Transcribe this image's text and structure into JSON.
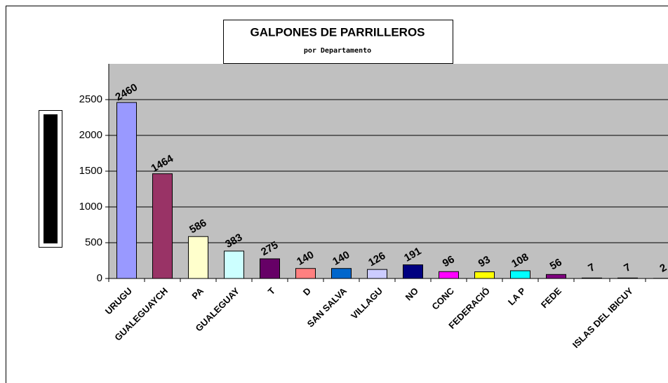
{
  "chart_data": {
    "type": "bar",
    "title": "GALPONES DE PARRILLEROS",
    "subtitle": "por Departamento",
    "categories": [
      "URUGU",
      "GUALEGUAYCH",
      "PA",
      "GUALEGUAY",
      "T",
      "D",
      "SAN SALVA",
      "VILLAGU",
      "NO",
      "CONC",
      "FEDERACIÓ",
      "LA P",
      "FEDE",
      null,
      "ISLAS DEL IBICUY",
      null
    ],
    "values": [
      2460,
      1464,
      586,
      383,
      275,
      140,
      140,
      126,
      191,
      96,
      93,
      108,
      56,
      7,
      7,
      2
    ],
    "colors": [
      "#9999ff",
      "#993366",
      "#ffffcc",
      "#ccffff",
      "#660066",
      "#ff8080",
      "#0066cc",
      "#ccccff",
      "#000080",
      "#ff00ff",
      "#ffff00",
      "#00ffff",
      "#800080",
      "#800000",
      "#008080",
      "#0000ff"
    ],
    "ylim": [
      0,
      3000
    ],
    "yticks": [
      0,
      500,
      1000,
      1500,
      2000,
      2500
    ],
    "grid": true
  }
}
